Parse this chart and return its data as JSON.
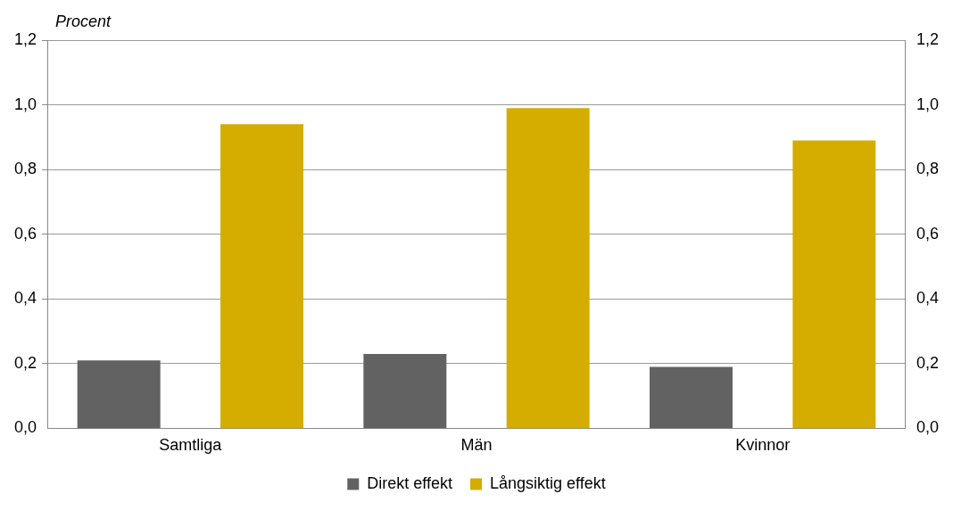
{
  "chart_data": {
    "type": "bar",
    "ylabel": "Procent",
    "categories": [
      "Samtliga",
      "Män",
      "Kvinnor"
    ],
    "series": [
      {
        "name": "Direkt effekt",
        "color": "#626262",
        "values": [
          0.21,
          0.23,
          0.19
        ]
      },
      {
        "name": "Långsiktig effekt",
        "color": "#d4ad00",
        "values": [
          0.94,
          0.99,
          0.89
        ]
      }
    ],
    "ylim": [
      0,
      1.2
    ],
    "yticks": [
      {
        "value": 0,
        "label": "0,0"
      },
      {
        "value": 0.2,
        "label": "0,2"
      },
      {
        "value": 0.4,
        "label": "0,4"
      },
      {
        "value": 0.6,
        "label": "0,6"
      },
      {
        "value": 0.8,
        "label": "0,8"
      },
      {
        "value": 1,
        "label": "1,0"
      },
      {
        "value": 1.2,
        "label": "1,2"
      }
    ],
    "y2lim": [
      0,
      1.2
    ],
    "y2ticks": [
      {
        "value": 0,
        "label": "0,0"
      },
      {
        "value": 0.2,
        "label": "0,2"
      },
      {
        "value": 0.4,
        "label": "0,4"
      },
      {
        "value": 0.6,
        "label": "0,6"
      },
      {
        "value": 0.8,
        "label": "0,8"
      },
      {
        "value": 1,
        "label": "1,0"
      },
      {
        "value": 1.2,
        "label": "1,2"
      }
    ],
    "grid": "y",
    "legend": "bottom"
  }
}
